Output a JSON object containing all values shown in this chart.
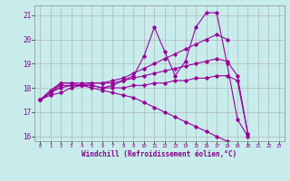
{
  "xlabel": "Windchill (Refroidissement éolien,°C)",
  "ylabel": "",
  "background_color": "#c8ecec",
  "line_color": "#990099",
  "grid_color": "#aaaaaa",
  "xlim": [
    -0.5,
    23.5
  ],
  "ylim": [
    15.8,
    21.4
  ],
  "yticks": [
    16,
    17,
    18,
    19,
    20,
    21
  ],
  "xticks": [
    0,
    1,
    2,
    3,
    4,
    5,
    6,
    7,
    8,
    9,
    10,
    11,
    12,
    13,
    14,
    15,
    16,
    17,
    18,
    19,
    20,
    21,
    22,
    23
  ],
  "series": [
    [
      17.5,
      17.8,
      18.2,
      18.2,
      18.1,
      18.1,
      18.0,
      18.1,
      18.3,
      18.5,
      19.3,
      20.5,
      19.5,
      18.5,
      19.1,
      20.5,
      21.1,
      21.1,
      19.0,
      16.7,
      16.0,
      null,
      null,
      null
    ],
    [
      17.5,
      17.9,
      18.2,
      18.2,
      18.2,
      18.2,
      18.2,
      18.3,
      18.4,
      18.6,
      18.8,
      19.0,
      19.2,
      19.4,
      19.6,
      19.8,
      20.0,
      20.2,
      20.0,
      null,
      null,
      null,
      null,
      null
    ],
    [
      17.5,
      17.8,
      18.1,
      18.1,
      18.1,
      18.2,
      18.2,
      18.2,
      18.3,
      18.4,
      18.5,
      18.6,
      18.7,
      18.8,
      18.9,
      19.0,
      19.1,
      19.2,
      19.1,
      18.5,
      16.1,
      null,
      null,
      null
    ],
    [
      17.5,
      17.8,
      18.0,
      18.1,
      18.1,
      18.1,
      18.0,
      18.0,
      18.0,
      18.1,
      18.1,
      18.2,
      18.2,
      18.3,
      18.3,
      18.4,
      18.4,
      18.5,
      18.5,
      18.3,
      16.1,
      null,
      null,
      null
    ],
    [
      17.5,
      17.7,
      17.8,
      18.0,
      18.1,
      18.0,
      17.9,
      17.8,
      17.7,
      17.6,
      17.4,
      17.2,
      17.0,
      16.8,
      16.6,
      16.4,
      16.2,
      16.0,
      15.8,
      null,
      null,
      null,
      null,
      null
    ]
  ],
  "tick_label_color": "#880088",
  "xlabel_color": "#880088"
}
